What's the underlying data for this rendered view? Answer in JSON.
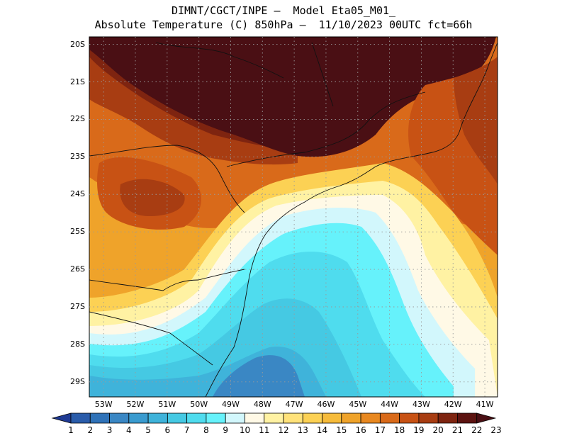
{
  "header": {
    "line1": "DIMNT/CGCT/INPE –  Model Eta05_M01_",
    "line2": "Absolute Temperature (C) 850hPa –  11/10/2023 00UTC fct=66h"
  },
  "map": {
    "lat_labels": [
      "20S",
      "21S",
      "22S",
      "23S",
      "24S",
      "25S",
      "26S",
      "27S",
      "28S",
      "29S"
    ],
    "lon_labels": [
      "53W",
      "52W",
      "51W",
      "50W",
      "49W",
      "48W",
      "47W",
      "46W",
      "45W",
      "44W",
      "43W",
      "42W",
      "41W"
    ],
    "extent": {
      "lon_min": -53.45,
      "lon_max": -40.6,
      "lat_min": -29.4,
      "lat_max": -19.8
    },
    "grid_lines": "dotted"
  },
  "colorbar": {
    "labels": [
      "1",
      "2",
      "3",
      "4",
      "5",
      "6",
      "7",
      "8",
      "9",
      "10",
      "11",
      "12",
      "13",
      "14",
      "15",
      "16",
      "17",
      "18",
      "19",
      "20",
      "21",
      "22",
      "23"
    ],
    "colors": [
      "#1f3a93",
      "#2a5caa",
      "#2f72b8",
      "#3a87c4",
      "#3a9bcf",
      "#3fb3da",
      "#45c9e3",
      "#4fdcee",
      "#66f2fb",
      "#d2f7fc",
      "#fff9e6",
      "#fff2a3",
      "#ffe27a",
      "#fcd154",
      "#f6bb3a",
      "#efa32a",
      "#e88820",
      "#d96a1a",
      "#c85214",
      "#a83d12",
      "#7e2410",
      "#5c1310",
      "#4a0f14"
    ]
  }
}
